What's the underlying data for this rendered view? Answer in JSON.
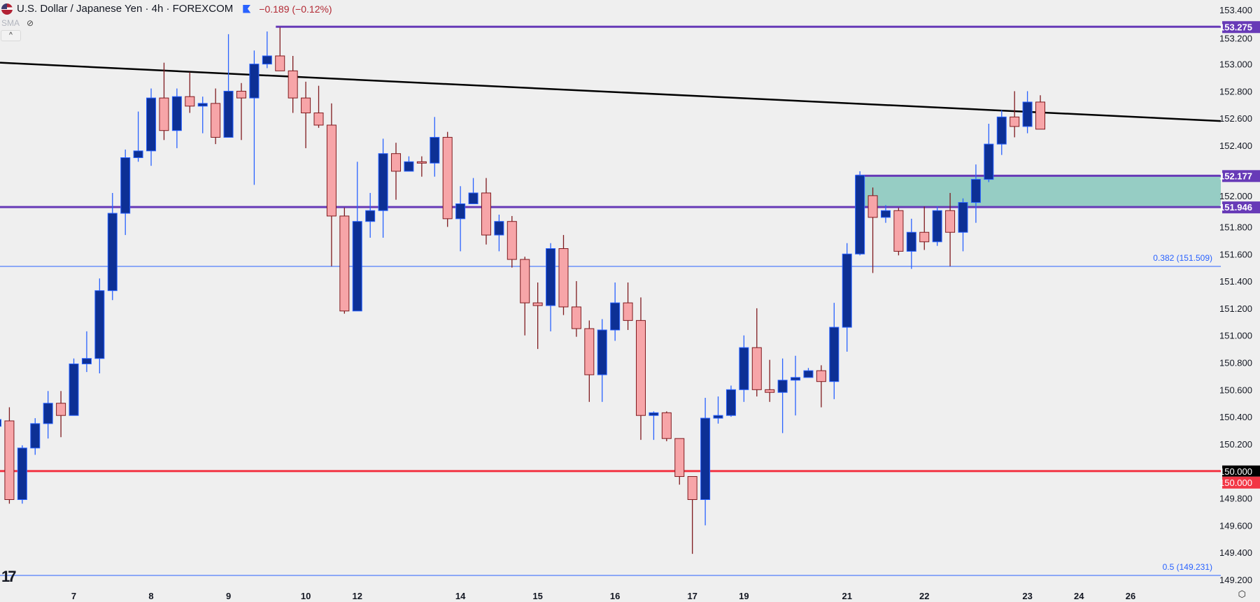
{
  "header": {
    "title": "U.S. Dollar / Japanese Yen · 4h · FOREXCOM",
    "change": "−0.189 (−0.12%)",
    "indicator": "SMA",
    "icons": [
      "us-flag-icon",
      "market-flag-icon",
      "eye-off-icon",
      "chevron-up-icon",
      "tradingview-logo-icon",
      "settings-icon"
    ]
  },
  "colors": {
    "background": "#efefef",
    "up_body": "#0d3095",
    "up_border": "#2962ff",
    "down_body": "#f7a5a8",
    "down_border": "#7f1a1e",
    "level_purple": "#673ab7",
    "level_red": "#f23645",
    "fib_blue": "#2962ff",
    "zone_fill": "#96cdc4",
    "trendline": "#000000"
  },
  "chart_data": {
    "type": "candlestick",
    "title": "U.S. Dollar / Japanese Yen · 4h · FOREXCOM",
    "ylim": [
      149.2,
      153.4
    ],
    "y_ticks": [
      "153.400",
      "153.200",
      "153.000",
      "152.800",
      "152.600",
      "152.400",
      "152.000",
      "151.800",
      "151.600",
      "151.400",
      "151.200",
      "151.000",
      "150.800",
      "150.600",
      "150.400",
      "150.200",
      "149.800",
      "149.600",
      "149.400",
      "149.200"
    ],
    "x_labels": [
      {
        "label": "7",
        "bar": 6
      },
      {
        "label": "8",
        "bar": 12
      },
      {
        "label": "9",
        "bar": 18
      },
      {
        "label": "10",
        "bar": 24
      },
      {
        "label": "12",
        "bar": 28
      },
      {
        "label": "14",
        "bar": 36
      },
      {
        "label": "15",
        "bar": 42
      },
      {
        "label": "16",
        "bar": 48
      },
      {
        "label": "17",
        "bar": 54
      },
      {
        "label": "19",
        "bar": 58
      },
      {
        "label": "21",
        "bar": 66
      },
      {
        "label": "22",
        "bar": 72
      },
      {
        "label": "23",
        "bar": 80
      },
      {
        "label": "24",
        "bar": 84
      },
      {
        "label": "26",
        "bar": 88
      }
    ],
    "candles": [
      [
        150.33,
        150.42,
        150.3,
        150.38
      ],
      [
        150.37,
        150.47,
        149.76,
        149.79
      ],
      [
        149.79,
        150.19,
        149.76,
        150.17
      ],
      [
        150.17,
        150.39,
        150.12,
        150.35
      ],
      [
        150.35,
        150.59,
        150.24,
        150.5
      ],
      [
        150.5,
        150.59,
        150.25,
        150.41
      ],
      [
        150.41,
        150.83,
        150.41,
        150.79
      ],
      [
        150.79,
        151.03,
        150.73,
        150.83
      ],
      [
        150.83,
        151.42,
        150.72,
        151.33
      ],
      [
        151.33,
        152.05,
        151.26,
        151.9
      ],
      [
        151.9,
        152.37,
        151.74,
        152.31
      ],
      [
        152.31,
        152.65,
        152.28,
        152.36
      ],
      [
        152.36,
        152.82,
        152.25,
        152.75
      ],
      [
        152.75,
        153.01,
        152.44,
        152.51
      ],
      [
        152.51,
        152.82,
        152.38,
        152.76
      ],
      [
        152.76,
        152.94,
        152.64,
        152.69
      ],
      [
        152.69,
        152.76,
        152.49,
        152.71
      ],
      [
        152.71,
        152.82,
        152.41,
        152.46
      ],
      [
        152.46,
        153.22,
        152.46,
        152.8
      ],
      [
        152.8,
        152.86,
        152.44,
        152.75
      ],
      [
        152.75,
        153.1,
        152.11,
        153.0
      ],
      [
        153.0,
        153.24,
        152.97,
        153.06
      ],
      [
        153.06,
        153.27,
        152.97,
        152.95
      ],
      [
        152.95,
        153.06,
        152.64,
        152.75
      ],
      [
        152.75,
        152.87,
        152.38,
        152.64
      ],
      [
        152.64,
        152.84,
        152.53,
        152.55
      ],
      [
        152.55,
        152.71,
        151.51,
        151.88
      ],
      [
        151.88,
        151.94,
        151.16,
        151.18
      ],
      [
        151.18,
        152.28,
        151.18,
        151.84
      ],
      [
        151.84,
        152.05,
        151.72,
        151.92
      ],
      [
        151.92,
        152.45,
        151.72,
        152.34
      ],
      [
        152.34,
        152.42,
        152.0,
        152.21
      ],
      [
        152.21,
        152.32,
        152.21,
        152.28
      ],
      [
        152.28,
        152.32,
        152.17,
        152.27
      ],
      [
        152.27,
        152.61,
        152.17,
        152.46
      ],
      [
        152.46,
        152.5,
        151.8,
        151.86
      ],
      [
        151.86,
        152.1,
        151.62,
        151.97
      ],
      [
        151.97,
        152.16,
        151.97,
        152.05
      ],
      [
        152.05,
        152.16,
        151.67,
        151.74
      ],
      [
        151.74,
        151.89,
        151.62,
        151.84
      ],
      [
        151.84,
        151.88,
        151.5,
        151.56
      ],
      [
        151.56,
        151.58,
        151.0,
        151.24
      ],
      [
        151.24,
        151.39,
        150.9,
        151.22
      ],
      [
        151.22,
        151.68,
        151.03,
        151.64
      ],
      [
        151.64,
        151.74,
        151.15,
        151.21
      ],
      [
        151.21,
        151.4,
        150.99,
        151.05
      ],
      [
        151.05,
        151.11,
        150.51,
        150.71
      ],
      [
        150.71,
        151.12,
        150.51,
        151.04
      ],
      [
        151.04,
        151.39,
        150.96,
        151.24
      ],
      [
        151.24,
        151.39,
        151.04,
        151.11
      ],
      [
        151.11,
        151.28,
        150.23,
        150.41
      ],
      [
        150.41,
        150.44,
        150.23,
        150.43
      ],
      [
        150.43,
        150.44,
        150.22,
        150.24
      ],
      [
        150.24,
        150.24,
        149.9,
        149.96
      ],
      [
        149.96,
        149.96,
        149.39,
        149.79
      ],
      [
        149.79,
        150.54,
        149.6,
        150.39
      ],
      [
        150.39,
        150.55,
        150.35,
        150.41
      ],
      [
        150.41,
        150.63,
        150.4,
        150.6
      ],
      [
        150.6,
        151.0,
        150.51,
        150.91
      ],
      [
        150.91,
        151.2,
        150.55,
        150.6
      ],
      [
        150.6,
        150.82,
        150.51,
        150.58
      ],
      [
        150.58,
        150.83,
        150.28,
        150.67
      ],
      [
        150.67,
        150.85,
        150.41,
        150.69
      ],
      [
        150.69,
        150.76,
        150.69,
        150.74
      ],
      [
        150.74,
        150.78,
        150.47,
        150.66
      ],
      [
        150.66,
        151.24,
        150.53,
        151.06
      ],
      [
        151.06,
        151.68,
        150.88,
        151.6
      ],
      [
        151.6,
        152.21,
        151.59,
        152.18
      ],
      [
        152.03,
        152.09,
        151.46,
        151.87
      ],
      [
        151.87,
        151.96,
        151.83,
        151.92
      ],
      [
        151.92,
        151.94,
        151.59,
        151.62
      ],
      [
        151.62,
        151.86,
        151.49,
        151.76
      ],
      [
        151.76,
        151.95,
        151.63,
        151.69
      ],
      [
        151.69,
        151.95,
        151.66,
        151.92
      ],
      [
        151.92,
        152.05,
        151.51,
        151.76
      ],
      [
        151.76,
        152.01,
        151.62,
        151.98
      ],
      [
        151.98,
        152.26,
        151.83,
        152.15
      ],
      [
        152.15,
        152.56,
        152.13,
        152.41
      ],
      [
        152.41,
        152.66,
        152.33,
        152.61
      ],
      [
        152.61,
        152.8,
        152.46,
        152.54
      ],
      [
        152.54,
        152.8,
        152.49,
        152.72
      ],
      [
        152.72,
        152.77,
        152.52,
        152.52
      ]
    ],
    "levels": [
      {
        "price": 153.275,
        "label": "153.275",
        "color": "#673ab7",
        "from_bar": 22
      },
      {
        "price": 152.177,
        "label": "152.177",
        "color": "#673ab7",
        "from_bar": 67
      },
      {
        "price": 151.946,
        "label": "151.946",
        "color": "#673ab7",
        "from_bar": 0
      },
      {
        "price": 150.0,
        "label": "150.000",
        "color": "#f23645",
        "from_bar": 0
      }
    ],
    "last_price_label": "150.000",
    "fib_levels": [
      {
        "price": 151.509,
        "label": "0.382 (151.509)"
      },
      {
        "price": 149.231,
        "label": "0.5 (149.231)"
      }
    ],
    "zone": {
      "from_bar": 67,
      "low": 151.946,
      "high": 152.177
    },
    "trendline": {
      "start_price": 153.01,
      "end_price": 152.58
    }
  }
}
